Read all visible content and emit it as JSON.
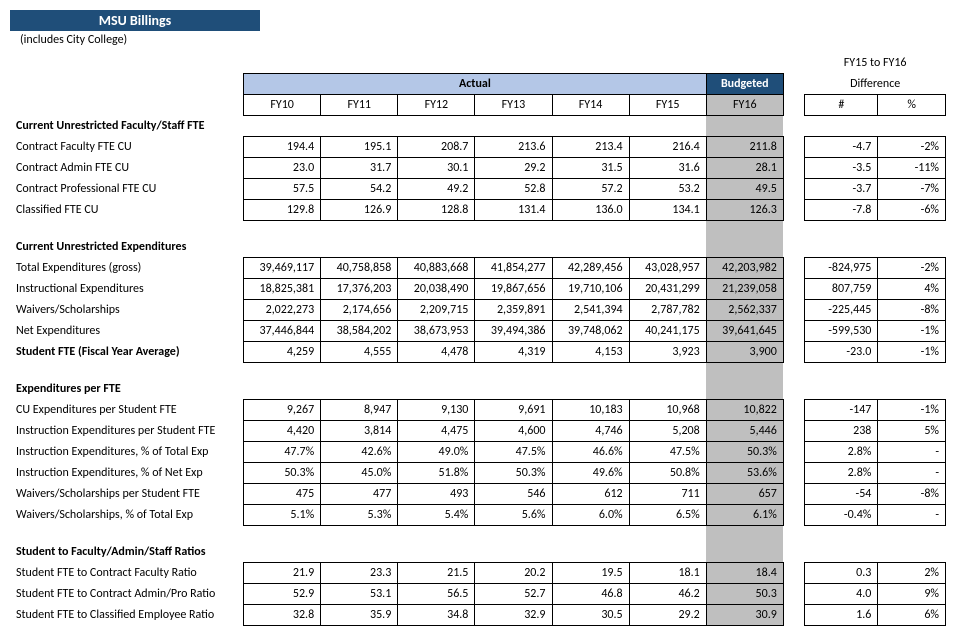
{
  "header": {
    "title": "MSU Billings",
    "subtitle": "(includes City College)"
  },
  "columns": {
    "actual_label": "Actual",
    "budgeted_label": "Budgeted",
    "diff_range": "FY15 to FY16",
    "diff_label": "Difference",
    "years": [
      "FY10",
      "FY11",
      "FY12",
      "FY13",
      "FY14",
      "FY15",
      "FY16"
    ],
    "diff_num": "#",
    "diff_pct": "%"
  },
  "sections": [
    {
      "title": "Current Unrestricted Faculty/Staff FTE",
      "rows": [
        {
          "label": "Contract Faculty FTE CU",
          "vals": [
            "194.4",
            "195.1",
            "208.7",
            "213.6",
            "213.4",
            "216.4",
            "211.8"
          ],
          "diff": "-4.7",
          "pct": "-2%"
        },
        {
          "label": "Contract Admin FTE CU",
          "vals": [
            "23.0",
            "31.7",
            "30.1",
            "29.2",
            "31.5",
            "31.6",
            "28.1"
          ],
          "diff": "-3.5",
          "pct": "-11%"
        },
        {
          "label": "Contract Professional FTE CU",
          "vals": [
            "57.5",
            "54.2",
            "49.2",
            "52.8",
            "57.2",
            "53.2",
            "49.5"
          ],
          "diff": "-3.7",
          "pct": "-7%"
        },
        {
          "label": "Classified FTE CU",
          "vals": [
            "129.8",
            "126.9",
            "128.8",
            "131.4",
            "136.0",
            "134.1",
            "126.3"
          ],
          "diff": "-7.8",
          "pct": "-6%"
        }
      ]
    },
    {
      "title": "Current Unrestricted Expenditures",
      "rows": [
        {
          "label": "Total Expenditures (gross)",
          "vals": [
            "39,469,117",
            "40,758,858",
            "40,883,668",
            "41,854,277",
            "42,289,456",
            "43,028,957",
            "42,203,982"
          ],
          "diff": "-824,975",
          "pct": "-2%"
        },
        {
          "label": "Instructional Expenditures",
          "vals": [
            "18,825,381",
            "17,376,203",
            "20,038,490",
            "19,867,656",
            "19,710,106",
            "20,431,299",
            "21,239,058"
          ],
          "diff": "807,759",
          "pct": "4%"
        },
        {
          "label": "Waivers/Scholarships",
          "vals": [
            "2,022,273",
            "2,174,656",
            "2,209,715",
            "2,359,891",
            "2,541,394",
            "2,787,782",
            "2,562,337"
          ],
          "diff": "-225,445",
          "pct": "-8%"
        },
        {
          "label": "Net Expenditures",
          "vals": [
            "37,446,844",
            "38,584,202",
            "38,673,953",
            "39,494,386",
            "39,748,062",
            "40,241,175",
            "39,641,645"
          ],
          "diff": "-599,530",
          "pct": "-1%"
        },
        {
          "label": "Student FTE (Fiscal Year Average)",
          "bold": true,
          "vals": [
            "4,259",
            "4,555",
            "4,478",
            "4,319",
            "4,153",
            "3,923",
            "3,900"
          ],
          "diff": "-23.0",
          "pct": "-1%"
        }
      ]
    },
    {
      "title": "Expenditures per FTE",
      "rows": [
        {
          "label": "CU Expenditures per Student FTE",
          "vals": [
            "9,267",
            "8,947",
            "9,130",
            "9,691",
            "10,183",
            "10,968",
            "10,822"
          ],
          "diff": "-147",
          "pct": "-1%"
        },
        {
          "label": "Instruction Expenditures per Student FTE",
          "vals": [
            "4,420",
            "3,814",
            "4,475",
            "4,600",
            "4,746",
            "5,208",
            "5,446"
          ],
          "diff": "238",
          "pct": "5%"
        },
        {
          "label": "Instruction Expenditures, % of Total Exp",
          "vals": [
            "47.7%",
            "42.6%",
            "49.0%",
            "47.5%",
            "46.6%",
            "47.5%",
            "50.3%"
          ],
          "diff": "2.8%",
          "pct": "-"
        },
        {
          "label": "Instruction Expenditures, % of Net Exp",
          "vals": [
            "50.3%",
            "45.0%",
            "51.8%",
            "50.3%",
            "49.6%",
            "50.8%",
            "53.6%"
          ],
          "diff": "2.8%",
          "pct": "-"
        },
        {
          "label": "Waivers/Scholarships per Student FTE",
          "vals": [
            "475",
            "477",
            "493",
            "546",
            "612",
            "711",
            "657"
          ],
          "diff": "-54",
          "pct": "-8%"
        },
        {
          "label": "Waivers/Scholarships, % of Total Exp",
          "vals": [
            "5.1%",
            "5.3%",
            "5.4%",
            "5.6%",
            "6.0%",
            "6.5%",
            "6.1%"
          ],
          "diff": "-0.4%",
          "pct": "-"
        }
      ]
    },
    {
      "title": "Student to Faculty/Admin/Staff Ratios",
      "rows": [
        {
          "label": "Student FTE to Contract Faculty Ratio",
          "vals": [
            "21.9",
            "23.3",
            "21.5",
            "20.2",
            "19.5",
            "18.1",
            "18.4"
          ],
          "diff": "0.3",
          "pct": "2%"
        },
        {
          "label": "Student FTE to Contract Admin/Pro Ratio",
          "vals": [
            "52.9",
            "53.1",
            "56.5",
            "52.7",
            "46.8",
            "46.2",
            "50.3"
          ],
          "diff": "4.0",
          "pct": "9%"
        },
        {
          "label": "Student FTE to Classified Employee Ratio",
          "vals": [
            "32.8",
            "35.9",
            "34.8",
            "32.9",
            "30.5",
            "29.2",
            "30.9"
          ],
          "diff": "1.6",
          "pct": "6%"
        }
      ]
    }
  ]
}
